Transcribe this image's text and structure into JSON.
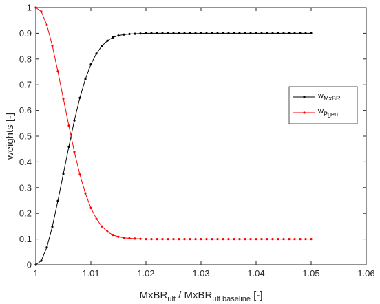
{
  "chart_data": {
    "type": "line",
    "xlabel": {
      "main": "MxBR",
      "sub1": "ult",
      "mid": " / MxBR",
      "sub2": "ult baseline",
      "tail": " [-]"
    },
    "ylabel": "weights [-]",
    "xlim": [
      1,
      1.06
    ],
    "ylim": [
      0,
      1
    ],
    "xticks": [
      1,
      1.01,
      1.02,
      1.03,
      1.04,
      1.05,
      1.06
    ],
    "xtick_labels": [
      "1",
      "1.01",
      "1.02",
      "1.03",
      "1.04",
      "1.05",
      "1.06"
    ],
    "yticks": [
      0,
      0.1,
      0.2,
      0.3,
      0.4,
      0.5,
      0.6,
      0.7,
      0.8,
      0.9,
      1
    ],
    "ytick_labels": [
      "0",
      "0.1",
      "0.2",
      "0.3",
      "0.4",
      "0.5",
      "0.6",
      "0.7",
      "0.8",
      "0.9",
      "1"
    ],
    "grid": false,
    "legend": "center-right",
    "x": [
      1.0,
      1.001,
      1.002,
      1.003,
      1.004,
      1.005,
      1.006,
      1.007,
      1.008,
      1.009,
      1.01,
      1.011,
      1.012,
      1.013,
      1.014,
      1.015,
      1.016,
      1.017,
      1.018,
      1.019,
      1.02,
      1.021,
      1.022,
      1.023,
      1.024,
      1.025,
      1.026,
      1.027,
      1.028,
      1.029,
      1.03,
      1.031,
      1.032,
      1.033,
      1.034,
      1.035,
      1.036,
      1.037,
      1.038,
      1.039,
      1.04,
      1.041,
      1.042,
      1.043,
      1.044,
      1.045,
      1.046,
      1.047,
      1.048,
      1.049,
      1.05
    ],
    "series": [
      {
        "name": {
          "main": "w",
          "sub": "MxBR"
        },
        "color": "#000000",
        "values": [
          0.0,
          0.016,
          0.068,
          0.148,
          0.248,
          0.354,
          0.459,
          0.561,
          0.649,
          0.722,
          0.779,
          0.821,
          0.851,
          0.871,
          0.884,
          0.891,
          0.895,
          0.897,
          0.898,
          0.899,
          0.9,
          0.9,
          0.9,
          0.9,
          0.9,
          0.9,
          0.9,
          0.9,
          0.9,
          0.9,
          0.9,
          0.9,
          0.9,
          0.9,
          0.9,
          0.9,
          0.9,
          0.9,
          0.9,
          0.9,
          0.9,
          0.9,
          0.9,
          0.9,
          0.9,
          0.9,
          0.9,
          0.9,
          0.9,
          0.9,
          0.9
        ]
      },
      {
        "name": {
          "main": "w",
          "sub": "Pgen"
        },
        "color": "#ff0000",
        "values": [
          1.0,
          0.984,
          0.932,
          0.852,
          0.752,
          0.646,
          0.541,
          0.439,
          0.351,
          0.278,
          0.221,
          0.179,
          0.149,
          0.129,
          0.116,
          0.109,
          0.105,
          0.103,
          0.102,
          0.101,
          0.1,
          0.1,
          0.1,
          0.1,
          0.1,
          0.1,
          0.1,
          0.1,
          0.1,
          0.1,
          0.1,
          0.1,
          0.1,
          0.1,
          0.1,
          0.1,
          0.1,
          0.1,
          0.1,
          0.1,
          0.1,
          0.1,
          0.1,
          0.1,
          0.1,
          0.1,
          0.1,
          0.1,
          0.1,
          0.1,
          0.1
        ]
      }
    ]
  }
}
